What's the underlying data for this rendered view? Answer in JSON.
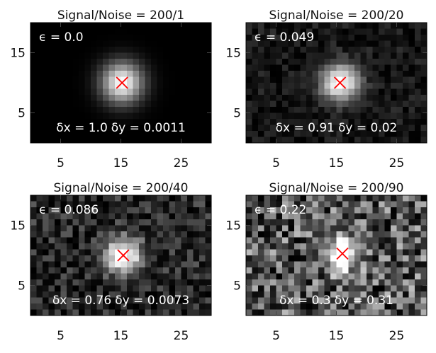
{
  "figure": {
    "background": "#ffffff",
    "marker_color": "#ff0000",
    "marker_symbol": "x"
  },
  "chart_data": [
    {
      "type": "heatmap",
      "title": "Signal/Noise = 200/1",
      "colormap": "gray",
      "grid_cols": 30,
      "grid_rows": 20,
      "xlim": [
        0,
        30
      ],
      "ylim": [
        0,
        20
      ],
      "xticks": [
        5,
        15,
        25
      ],
      "yticks": [
        5,
        15
      ],
      "xtick_labels": [
        "5",
        "15",
        "25"
      ],
      "ytick_labels": [
        "5",
        "15"
      ],
      "signal": 200,
      "noise": 1,
      "center": [
        15.2,
        10.0
      ],
      "sigma": 2.3,
      "marker": [
        15.2,
        10.0
      ],
      "epsilon_label": "ϵ = 0.0",
      "dx_label": "δx = 1.0",
      "dy_label": "δy = 0.0011",
      "epsilon": 0.0,
      "dx": 1.0,
      "dy": 0.0011
    },
    {
      "type": "heatmap",
      "title": "Signal/Noise = 200/20",
      "colormap": "gray",
      "grid_cols": 30,
      "grid_rows": 20,
      "xlim": [
        0,
        30
      ],
      "ylim": [
        0,
        20
      ],
      "xticks": [
        5,
        15,
        25
      ],
      "yticks": [
        5,
        15
      ],
      "xtick_labels": [
        "5",
        "15",
        "25"
      ],
      "ytick_labels": [
        "5",
        "15"
      ],
      "signal": 200,
      "noise": 20,
      "center": [
        15.6,
        10.0
      ],
      "sigma": 2.1,
      "marker": [
        15.6,
        10.0
      ],
      "epsilon_label": "ϵ = 0.049",
      "dx_label": "δx = 0.91",
      "dy_label": "δy = 0.02",
      "epsilon": 0.049,
      "dx": 0.91,
      "dy": 0.02
    },
    {
      "type": "heatmap",
      "title": "Signal/Noise = 200/40",
      "colormap": "gray",
      "grid_cols": 30,
      "grid_rows": 20,
      "xlim": [
        0,
        30
      ],
      "ylim": [
        0,
        20
      ],
      "xticks": [
        5,
        15,
        25
      ],
      "yticks": [
        5,
        15
      ],
      "xtick_labels": [
        "5",
        "15",
        "25"
      ],
      "ytick_labels": [
        "5",
        "15"
      ],
      "signal": 200,
      "noise": 40,
      "center": [
        15.4,
        10.0
      ],
      "sigma": 2.0,
      "marker": [
        15.4,
        10.0
      ],
      "epsilon_label": "ϵ = 0.086",
      "dx_label": "δx = 0.76",
      "dy_label": "δy = 0.0073",
      "epsilon": 0.086,
      "dx": 0.76,
      "dy": 0.0073
    },
    {
      "type": "heatmap",
      "title": "Signal/Noise = 200/90",
      "colormap": "gray",
      "grid_cols": 30,
      "grid_rows": 20,
      "xlim": [
        0,
        30
      ],
      "ylim": [
        0,
        20
      ],
      "xticks": [
        5,
        15,
        25
      ],
      "yticks": [
        5,
        15
      ],
      "xtick_labels": [
        "5",
        "15",
        "25"
      ],
      "ytick_labels": [
        "5",
        "15"
      ],
      "signal": 200,
      "noise": 90,
      "center": [
        16.0,
        10.3
      ],
      "sigma": 1.9,
      "marker": [
        16.0,
        10.3
      ],
      "epsilon_label": "ϵ = 0.22",
      "dx_label": "δx = 0.3",
      "dy_label": "δy = 0.31",
      "epsilon": 0.22,
      "dx": 0.3,
      "dy": 0.31
    }
  ]
}
